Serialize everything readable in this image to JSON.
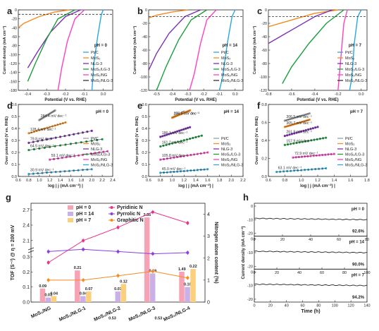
{
  "figure": {
    "panels": [
      {
        "id": "a",
        "type": "line",
        "ylim": [
          -180,
          0
        ],
        "xlim": [
          -0.45,
          0.05
        ],
        "yticks": [
          "0",
          "-20",
          "-40",
          "-60",
          "-80",
          "-100",
          "-120",
          "-140",
          "-160",
          "-180"
        ],
        "xticks": [
          "-0.4",
          "-0.3",
          "-0.2",
          "-0.1",
          "0.0"
        ],
        "xlabel": "Potential (V vs. RHE)",
        "ylabel": "Current density (mA cm⁻²)",
        "condition": "pH = 0",
        "legend": [
          "Pt/C",
          "MoS₂",
          "NLG-3",
          "MoS₂/LG-3",
          "MoS₂/NG",
          "MoS₂/NLG-3"
        ],
        "series": [
          {
            "color": "#29a8e0",
            "x": [
              0.0,
              -0.01,
              -0.03,
              -0.05,
              -0.06
            ],
            "y": [
              0,
              -10,
              -60,
              -120,
              -180
            ]
          },
          {
            "color": "#f58a1f",
            "x": [
              -0.18,
              -0.26,
              -0.34,
              -0.42,
              -0.45
            ],
            "y": [
              0,
              -5,
              -15,
              -30,
              -40
            ]
          },
          {
            "color": "#7b2fb5",
            "x": [
              -0.12,
              -0.2,
              -0.28,
              -0.35,
              -0.4
            ],
            "y": [
              0,
              -15,
              -50,
              -95,
              -130
            ]
          },
          {
            "color": "#1b9e3e",
            "x": [
              -0.15,
              -0.24,
              -0.3,
              -0.36,
              -0.4
            ],
            "y": [
              0,
              -20,
              -65,
              -120,
              -160
            ]
          },
          {
            "color": "#ff3fc4",
            "x": [
              -0.1,
              -0.15,
              -0.19,
              -0.22,
              -0.24
            ],
            "y": [
              0,
              -20,
              -70,
              -130,
              -180
            ]
          },
          {
            "color": "#333333",
            "x": [
              -0.45,
              0.05
            ],
            "y": [
              -10,
              -10
            ],
            "dash": true
          }
        ]
      },
      {
        "id": "b",
        "type": "line",
        "ylim": [
          -120,
          0
        ],
        "xlim": [
          -0.55,
          0.05
        ],
        "yticks": [
          "0",
          "-20",
          "-40",
          "-60",
          "-80",
          "-100",
          "-120"
        ],
        "xticks": [
          "-0.5",
          "-0.4",
          "-0.3",
          "-0.2",
          "-0.1",
          "0.0"
        ],
        "xlabel": "Potential (V vs. RHE)",
        "ylabel": "Current density (mA cm⁻²)",
        "condition": "pH = 14",
        "legend": [
          "Pt/C",
          "MoS₂",
          "NLG-3",
          "MoS₂/LG-3",
          "MoS₂/NG",
          "MoS₂/NLG-3"
        ],
        "series": [
          {
            "color": "#29a8e0",
            "x": [
              0.0,
              -0.02,
              -0.05,
              -0.08,
              -0.1
            ],
            "y": [
              0,
              -10,
              -50,
              -100,
              -120
            ]
          },
          {
            "color": "#f58a1f",
            "x": [
              -0.3,
              -0.4,
              -0.5,
              -0.55
            ],
            "y": [
              0,
              -3,
              -8,
              -12
            ]
          },
          {
            "color": "#7b2fb5",
            "x": [
              -0.22,
              -0.32,
              -0.42,
              -0.5,
              -0.55
            ],
            "y": [
              0,
              -10,
              -35,
              -65,
              -90
            ]
          },
          {
            "color": "#1b9e3e",
            "x": [
              -0.18,
              -0.28,
              -0.36,
              -0.44,
              -0.5
            ],
            "y": [
              0,
              -15,
              -45,
              -85,
              -120
            ]
          },
          {
            "color": "#ff3fc4",
            "x": [
              -0.12,
              -0.18,
              -0.22,
              -0.26,
              -0.29
            ],
            "y": [
              0,
              -15,
              -50,
              -95,
              -120
            ]
          },
          {
            "color": "#333333",
            "x": [
              -0.55,
              0.05
            ],
            "y": [
              -10,
              -10
            ],
            "dash": true
          }
        ]
      },
      {
        "id": "c",
        "type": "line",
        "ylim": [
          -120,
          0
        ],
        "xlim": [
          -0.8,
          0.05
        ],
        "yticks": [
          "0",
          "-20",
          "-40",
          "-60",
          "-80",
          "-100",
          "-120"
        ],
        "xticks": [
          "-0.8",
          "-0.6",
          "-0.4",
          "-0.2",
          "0.0"
        ],
        "xlabel": "Potential (V vs. RHE)",
        "ylabel": "Current density (mA cm⁻²)",
        "condition": "pH = 7",
        "legend": [
          "Pt/C",
          "MoS₂",
          "NLG-3",
          "MoS₂/LG-3",
          "MoS₂/NG",
          "MoS₂/NLG-3"
        ],
        "series": [
          {
            "color": "#29a8e0",
            "x": [
              0.0,
              -0.03,
              -0.06,
              -0.08,
              -0.1
            ],
            "y": [
              0,
              -10,
              -50,
              -100,
              -120
            ]
          },
          {
            "color": "#f58a1f",
            "x": [
              -0.2,
              -0.4,
              -0.6,
              -0.8
            ],
            "y": [
              0,
              -5,
              -15,
              -25
            ]
          },
          {
            "color": "#7b2fb5",
            "x": [
              -0.25,
              -0.4,
              -0.55,
              -0.7,
              -0.8
            ],
            "y": [
              0,
              -10,
              -25,
              -40,
              -50
            ]
          },
          {
            "color": "#1b9e3e",
            "x": [
              -0.15,
              -0.3,
              -0.45,
              -0.6,
              -0.68
            ],
            "y": [
              0,
              -20,
              -50,
              -85,
              -110
            ]
          },
          {
            "color": "#ff3fc4",
            "x": [
              -0.12,
              -0.15,
              -0.17,
              -0.19,
              -0.2
            ],
            "y": [
              0,
              -20,
              -60,
              -100,
              -120
            ]
          },
          {
            "color": "#333333",
            "x": [
              -0.8,
              0.05
            ],
            "y": [
              -10,
              -10
            ],
            "dash": true
          }
        ]
      },
      {
        "id": "d",
        "type": "scatter",
        "ylim": [
          0.0,
          0.6
        ],
        "xlim": [
          0.6,
          2.4
        ],
        "yticks": [
          "0.0",
          "0.1",
          "0.2",
          "0.3",
          "0.4",
          "0.5",
          "0.6"
        ],
        "xticks": [
          "0.6",
          "0.8",
          "1.0",
          "1.2",
          "1.4",
          "1.6",
          "1.8",
          "2.0",
          "2.2",
          "2.4"
        ],
        "xlabel": "log | j (mA cm⁻²) |",
        "ylabel": "Over potential (V vs. RHE)",
        "condition": "pH = 0",
        "legend": [
          "Pt/C",
          "MoS₂",
          "NLG-3",
          "MoS₂/LG-3",
          "MoS₂/NG",
          "MoS₂/NLG-3"
        ],
        "annotations": [
          "284.4 mV dec⁻¹",
          "128.4 mV dec⁻¹",
          "79.8 mV dec⁻¹",
          "64.5 mV dec⁻¹",
          "59.1 mV dec⁻¹",
          "30.9 mV dec⁻¹"
        ],
        "series": [
          {
            "color": "#9e9e9e",
            "x": [
              1.0,
              1.3
            ],
            "y": [
              0.47,
              0.55
            ]
          },
          {
            "color": "#f58a1f",
            "x": [
              0.8,
              1.5
            ],
            "y": [
              0.36,
              0.45
            ]
          },
          {
            "color": "#7b2fb5",
            "x": [
              0.8,
              2.0
            ],
            "y": [
              0.28,
              0.38
            ]
          },
          {
            "color": "#1b9e3e",
            "x": [
              0.8,
              2.2
            ],
            "y": [
              0.22,
              0.31
            ]
          },
          {
            "color": "#ff3fc4",
            "x": [
              1.2,
              2.3
            ],
            "y": [
              0.14,
              0.21
            ]
          },
          {
            "color": "#29a8e0",
            "x": [
              0.8,
              2.0
            ],
            "y": [
              0.02,
              0.06
            ]
          }
        ]
      },
      {
        "id": "e",
        "type": "scatter",
        "ylim": [
          0.0,
          0.6
        ],
        "xlim": [
          0.6,
          2.2
        ],
        "yticks": [
          "0.0",
          "0.1",
          "0.2",
          "0.3",
          "0.4",
          "0.5",
          "0.6"
        ],
        "xticks": [
          "0.6",
          "0.8",
          "1.0",
          "1.2",
          "1.4",
          "1.6",
          "1.8",
          "2.0",
          "2.2"
        ],
        "xlabel": "log | j (mA cm⁻²) |",
        "ylabel": "Over potential (V vs. RHE)",
        "condition": "pH = 14",
        "legend": [
          "Pt/C",
          "MoS₂",
          "NLG-3",
          "MoS₂/LG-3",
          "MoS₂/NG",
          "MoS₂/NLG-3"
        ],
        "annotations": [
          "256.6 mV dec⁻¹",
          "185.5 mV dec⁻¹",
          "186.1 mV dec⁻¹",
          "161.2 mV dec⁻¹",
          "105.8 mV dec⁻¹",
          "45.0 mV dec⁻¹"
        ],
        "series": [
          {
            "color": "#9e9e9e",
            "x": [
              1.0,
              1.2
            ],
            "y": [
              0.49,
              0.54
            ]
          },
          {
            "color": "#f58a1f",
            "x": [
              1.0,
              1.3
            ],
            "y": [
              0.49,
              0.55
            ]
          },
          {
            "color": "#7b2fb5",
            "x": [
              0.8,
              1.3
            ],
            "y": [
              0.33,
              0.41
            ]
          },
          {
            "color": "#1b9e3e",
            "x": [
              0.8,
              1.5
            ],
            "y": [
              0.25,
              0.34
            ]
          },
          {
            "color": "#ff3fc4",
            "x": [
              0.8,
              1.6
            ],
            "y": [
              0.14,
              0.2
            ]
          },
          {
            "color": "#29a8e0",
            "x": [
              0.8,
              1.6
            ],
            "y": [
              0.03,
              0.06
            ]
          }
        ]
      },
      {
        "id": "f",
        "type": "scatter",
        "ylim": [
          0.0,
          0.8
        ],
        "xlim": [
          0.6,
          1.8
        ],
        "yticks": [
          "0.0",
          "0.2",
          "0.4",
          "0.6",
          "0.8"
        ],
        "xticks": [
          "0.6",
          "0.8",
          "1.0",
          "1.2",
          "1.4",
          "1.6",
          "1.8"
        ],
        "xlabel": "log | j (mA cm⁻²) |",
        "ylabel": "Over potential (V vs. RHE)",
        "condition": "pH = 7",
        "legend": [
          "Pt/C",
          "MoS₂",
          "NLG-3",
          "MoS₂/LG-3",
          "MoS₂/NG",
          "MoS₂/NLG-3"
        ],
        "annotations": [
          "306.5 mV dec⁻¹",
          "305.7 mV dec⁻¹",
          "261.9 mV dec⁻¹",
          "157.9 mV dec⁻¹",
          "72.9 mV dec⁻¹",
          "63.1 mV dec⁻¹"
        ],
        "series": [
          {
            "color": "#9e9e9e",
            "x": [
              0.8,
              1.1
            ],
            "y": [
              0.62,
              0.7
            ]
          },
          {
            "color": "#f58a1f",
            "x": [
              0.8,
              1.1
            ],
            "y": [
              0.55,
              0.63
            ]
          },
          {
            "color": "#7b2fb5",
            "x": [
              0.8,
              1.2
            ],
            "y": [
              0.45,
              0.55
            ]
          },
          {
            "color": "#1b9e3e",
            "x": [
              0.8,
              1.3
            ],
            "y": [
              0.35,
              0.43
            ]
          },
          {
            "color": "#ff3fc4",
            "x": [
              0.9,
              1.4
            ],
            "y": [
              0.21,
              0.25
            ]
          },
          {
            "color": "#29a8e0",
            "x": [
              0.7,
              1.3
            ],
            "y": [
              0.05,
              0.09
            ]
          }
        ]
      },
      {
        "id": "g",
        "type": "bar",
        "categories": [
          "MoS₂/NG",
          "MoS₂/NLG-1",
          "MoS₂/NLG-2",
          "MoS₂/NLG-3",
          "MoS₂/NLG-4"
        ],
        "ylabel": "TOF (S⁻¹) @ η = 200 mV",
        "y2label": "Nitrogen atom content (%)",
        "yticks": [
          "0.0",
          "0.1",
          "0.2",
          "0.3",
          "2.1",
          "2.4",
          "2.7"
        ],
        "y2ticks": [
          "0",
          "1",
          "2",
          "3",
          "4"
        ],
        "legend": [
          "pH = 0",
          "pH = 14",
          "pH = 7",
          "Pyridinic N",
          "Pyrrolic N",
          "Graphitic N"
        ],
        "bars": [
          {
            "name": "pH = 0",
            "color": "#f6a3b5",
            "values": [
              0.09,
              0.21,
              0.53,
              2.55,
              1.49
            ],
            "labels": [
              "0.09",
              "0.21",
              "0.53",
              "2.55",
              "1.49"
            ]
          },
          {
            "name": "pH = 14",
            "color": "#c9b0e6",
            "values": [
              0.03,
              0.04,
              0.07,
              0.19,
              0.1
            ],
            "labels": [
              "0.03",
              "0.04",
              "0.07",
              "0.19",
              "0.10"
            ]
          },
          {
            "name": "pH = 7",
            "color": "#fbcf7b",
            "values": [
              0.04,
              0.07,
              0.12,
              0.53,
              0.22
            ],
            "labels": [
              "0.04",
              "0.07",
              "0.12",
              "0.53",
              "0.22"
            ]
          }
        ],
        "lines": [
          {
            "name": "Pyridinic N",
            "color": "#e8338a",
            "values": [
              1.8,
              2.8,
              3.4,
              4.1,
              3.6
            ]
          },
          {
            "name": "Pyrrolic N",
            "color": "#8a3fe0",
            "values": [
              2.3,
              2.4,
              2.3,
              2.2,
              2.25
            ]
          },
          {
            "name": "Graphitic N",
            "color": "#f58a1f",
            "values": [
              1.0,
              1.0,
              1.2,
              1.4,
              1.1
            ]
          }
        ]
      },
      {
        "id": "h",
        "type": "line",
        "xlabel": "Time (h)",
        "ylabel": "Current density (mA cm⁻²)",
        "subpanels": [
          {
            "condition": "pH = 0",
            "retention": "92.6%",
            "xlim": [
              0,
              80
            ],
            "xticks": [
              "0",
              "20",
              "40",
              "60",
              "80"
            ],
            "ylim": [
              -20,
              0
            ],
            "yticks": [
              "0",
              "-10",
              "-20"
            ],
            "level": -9,
            "end": -10
          },
          {
            "condition": "pH = 14",
            "retention": "90.0%",
            "xlim": [
              0,
              100
            ],
            "xticks": [
              "0",
              "20",
              "40",
              "60",
              "80",
              "100"
            ],
            "ylim": [
              -20,
              0
            ],
            "yticks": [
              "0",
              "-10",
              "-20"
            ],
            "level": -9,
            "end": -10
          },
          {
            "condition": "pH = 7",
            "retention": "94.2%",
            "xlim": [
              0,
              140
            ],
            "xticks": [
              "0",
              "20",
              "40",
              "60",
              "80",
              "100",
              "120",
              "140"
            ],
            "ylim": [
              -20,
              0
            ],
            "yticks": [
              "0",
              "-10",
              "-20"
            ],
            "level": -9,
            "end": -10
          }
        ]
      }
    ]
  }
}
